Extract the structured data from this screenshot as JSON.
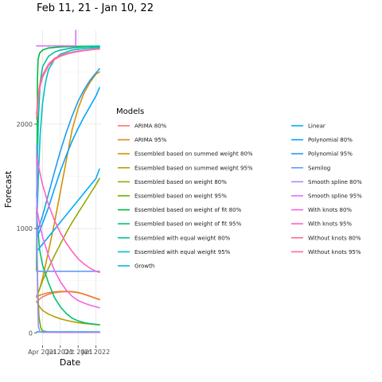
{
  "chart_data": {
    "type": "line",
    "title": "Feb 11, 21 - Jan 10, 22",
    "xlabel": "Date",
    "ylabel": "Forecast",
    "xlim": [
      0,
      11
    ],
    "ylim": [
      -120,
      2900
    ],
    "x_ticks": [
      {
        "x": 1.0,
        "label": "Apr 2021"
      },
      {
        "x": 4.0,
        "label": "Jul 2021"
      },
      {
        "x": 7.0,
        "label": "Oct 2021"
      },
      {
        "x": 10.0,
        "label": "Jan 2022"
      }
    ],
    "y_ticks": [
      0,
      1000,
      2000
    ],
    "grid": true,
    "legend": {
      "title": "Models",
      "position": "right",
      "columns": 2
    },
    "series": [
      {
        "name": "ARIMA 80%",
        "color": "#F8766D",
        "values": [
          [
            0,
            300
          ],
          [
            0.3,
            315
          ],
          [
            1,
            345
          ],
          [
            2,
            370
          ],
          [
            3,
            385
          ],
          [
            4,
            392
          ],
          [
            5,
            395
          ],
          [
            6,
            392
          ],
          [
            7,
            385
          ],
          [
            8,
            370
          ],
          [
            9,
            350
          ],
          [
            10,
            330
          ],
          [
            10.6,
            318
          ]
        ]
      },
      {
        "name": "ARIMA 95%",
        "color": "#E88526",
        "values": [
          [
            0,
            340
          ],
          [
            0.3,
            355
          ],
          [
            1,
            370
          ],
          [
            2,
            385
          ],
          [
            3,
            392
          ],
          [
            4,
            396
          ],
          [
            5,
            398
          ],
          [
            6,
            395
          ],
          [
            7,
            388
          ],
          [
            8,
            372
          ],
          [
            9,
            352
          ],
          [
            10,
            332
          ],
          [
            10.6,
            320
          ]
        ]
      },
      {
        "name": "Essembled based on summed weight 80%",
        "color": "#D39200",
        "values": [
          [
            0,
            350
          ],
          [
            0.5,
            420
          ],
          [
            1,
            520
          ],
          [
            2,
            780
          ],
          [
            3,
            1050
          ],
          [
            4,
            1350
          ],
          [
            5,
            1650
          ],
          [
            6,
            1950
          ],
          [
            7,
            2150
          ],
          [
            8,
            2300
          ],
          [
            9,
            2400
          ],
          [
            10,
            2480
          ],
          [
            10.6,
            2500
          ]
        ]
      },
      {
        "name": "Essembled based on summed weight 95%",
        "color": "#B79F00",
        "values": [
          [
            0,
            300
          ],
          [
            0.5,
            250
          ],
          [
            1,
            215
          ],
          [
            2,
            180
          ],
          [
            3,
            155
          ],
          [
            4,
            135
          ],
          [
            5,
            120
          ],
          [
            6,
            108
          ],
          [
            7,
            98
          ],
          [
            8,
            90
          ],
          [
            9,
            85
          ],
          [
            10,
            80
          ],
          [
            10.6,
            78
          ]
        ]
      },
      {
        "name": "Essembled based on weight 80%",
        "color": "#93AA00",
        "values": [
          [
            0,
            350
          ],
          [
            0.5,
            420
          ],
          [
            1,
            500
          ],
          [
            2,
            620
          ],
          [
            3,
            740
          ],
          [
            4,
            850
          ],
          [
            5,
            960
          ],
          [
            6,
            1060
          ],
          [
            7,
            1150
          ],
          [
            8,
            1240
          ],
          [
            9,
            1330
          ],
          [
            10,
            1420
          ],
          [
            10.6,
            1480
          ]
        ]
      },
      {
        "name": "Essembled based on weight 95%",
        "color": "#5EB300",
        "values": [
          [
            0,
            1200
          ],
          [
            0.08,
            800
          ],
          [
            0.2,
            400
          ],
          [
            0.4,
            150
          ],
          [
            0.7,
            50
          ],
          [
            1,
            20
          ],
          [
            2,
            8
          ],
          [
            4,
            5
          ],
          [
            7,
            5
          ],
          [
            10.6,
            5
          ]
        ]
      },
      {
        "name": "Essembled based on weight of fit 80%",
        "color": "#00BA38",
        "values": [
          [
            0,
            600
          ],
          [
            0.08,
            1800
          ],
          [
            0.15,
            2450
          ],
          [
            0.25,
            2620
          ],
          [
            0.5,
            2680
          ],
          [
            1,
            2710
          ],
          [
            2,
            2730
          ],
          [
            4,
            2740
          ],
          [
            7,
            2745
          ],
          [
            10.6,
            2748
          ]
        ]
      },
      {
        "name": "Essembled based on weight of fit 95%",
        "color": "#00BF74",
        "values": [
          [
            0,
            1150
          ],
          [
            0.2,
            1000
          ],
          [
            0.5,
            800
          ],
          [
            1,
            650
          ],
          [
            2,
            480
          ],
          [
            3,
            340
          ],
          [
            4,
            250
          ],
          [
            5,
            185
          ],
          [
            6,
            140
          ],
          [
            7,
            115
          ],
          [
            8,
            98
          ],
          [
            9,
            88
          ],
          [
            10,
            82
          ],
          [
            10.6,
            78
          ]
        ]
      },
      {
        "name": "Essembled with equal weight 80%",
        "color": "#00C19F",
        "values": [
          [
            0,
            1300
          ],
          [
            0.15,
            1700
          ],
          [
            0.3,
            2050
          ],
          [
            0.6,
            2400
          ],
          [
            1,
            2550
          ],
          [
            2,
            2650
          ],
          [
            3,
            2690
          ],
          [
            4,
            2710
          ],
          [
            6,
            2730
          ],
          [
            8,
            2740
          ],
          [
            10.6,
            2745
          ]
        ]
      },
      {
        "name": "Essembled with equal weight 95%",
        "color": "#00BFC4",
        "values": [
          [
            0,
            1000
          ],
          [
            0.3,
            1500
          ],
          [
            0.6,
            1900
          ],
          [
            1,
            2200
          ],
          [
            1.5,
            2400
          ],
          [
            2,
            2520
          ],
          [
            3,
            2620
          ],
          [
            4,
            2670
          ],
          [
            6,
            2710
          ],
          [
            8,
            2725
          ],
          [
            10.6,
            2735
          ]
        ]
      },
      {
        "name": "Growth",
        "color": "#00B9E3",
        "values": [
          [
            0,
            10
          ],
          [
            3,
            10
          ],
          [
            6,
            10
          ],
          [
            10.6,
            10
          ]
        ]
      },
      {
        "name": "Linear",
        "color": "#00ADFA",
        "values": [
          [
            0,
            780
          ],
          [
            1,
            850
          ],
          [
            2,
            920
          ],
          [
            3,
            990
          ],
          [
            4,
            1060
          ],
          [
            5,
            1130
          ],
          [
            6,
            1200
          ],
          [
            7,
            1270
          ],
          [
            8,
            1340
          ],
          [
            9,
            1410
          ],
          [
            10,
            1480
          ],
          [
            10.6,
            1570
          ]
        ]
      },
      {
        "name": "Polynomial 80%",
        "color": "#00A5FF",
        "values": [
          [
            0,
            900
          ],
          [
            1,
            1050
          ],
          [
            2,
            1200
          ],
          [
            3,
            1380
          ],
          [
            4,
            1550
          ],
          [
            5,
            1700
          ],
          [
            6,
            1840
          ],
          [
            7,
            1960
          ],
          [
            8,
            2070
          ],
          [
            9,
            2170
          ],
          [
            10,
            2270
          ],
          [
            10.6,
            2350
          ]
        ]
      },
      {
        "name": "Polynomial 95%",
        "color": "#1E9CF0",
        "values": [
          [
            0,
            950
          ],
          [
            1,
            1120
          ],
          [
            2,
            1330
          ],
          [
            3,
            1540
          ],
          [
            4,
            1740
          ],
          [
            5,
            1920
          ],
          [
            6,
            2080
          ],
          [
            7,
            2220
          ],
          [
            8,
            2330
          ],
          [
            9,
            2420
          ],
          [
            10,
            2490
          ],
          [
            10.6,
            2530
          ]
        ]
      },
      {
        "name": "Semilog",
        "color": "#619CFF",
        "values": [
          [
            0,
            590
          ],
          [
            3,
            590
          ],
          [
            6,
            590
          ],
          [
            10.6,
            590
          ]
        ]
      },
      {
        "name": "Smooth spline 80%",
        "color": "#AE87FF",
        "values": [
          [
            0,
            1800
          ],
          [
            0.05,
            1200
          ],
          [
            0.15,
            400
          ],
          [
            0.3,
            60
          ],
          [
            0.6,
            10
          ],
          [
            1,
            5
          ],
          [
            4,
            5
          ],
          [
            10.6,
            5
          ]
        ]
      },
      {
        "name": "Smooth spline 95%",
        "color": "#DB72FB",
        "values": [
          [
            0,
            2750
          ],
          [
            1,
            2750
          ],
          [
            3,
            2750
          ],
          [
            5,
            2750
          ],
          [
            6,
            2750
          ],
          [
            6.6,
            2750
          ],
          [
            6.6,
            2900
          ]
        ]
      },
      {
        "name": "With knots 80%",
        "color": "#F564E3",
        "values": [
          [
            0,
            1200
          ],
          [
            0.5,
            1050
          ],
          [
            1,
            920
          ],
          [
            2,
            740
          ],
          [
            3,
            600
          ],
          [
            4,
            490
          ],
          [
            5,
            410
          ],
          [
            6,
            350
          ],
          [
            7,
            310
          ],
          [
            8,
            285
          ],
          [
            9,
            265
          ],
          [
            10,
            250
          ],
          [
            10.6,
            240
          ]
        ]
      },
      {
        "name": "With knots 95%",
        "color": "#FF61C3",
        "values": [
          [
            0,
            1700
          ],
          [
            0.5,
            1550
          ],
          [
            1,
            1420
          ],
          [
            2,
            1230
          ],
          [
            3,
            1080
          ],
          [
            4,
            960
          ],
          [
            5,
            860
          ],
          [
            6,
            780
          ],
          [
            7,
            710
          ],
          [
            8,
            660
          ],
          [
            9,
            620
          ],
          [
            10,
            590
          ],
          [
            10.6,
            580
          ]
        ]
      },
      {
        "name": "Without knots 80%",
        "color": "#FF6C91",
        "values": [
          [
            0,
            2050
          ],
          [
            0.2,
            2200
          ],
          [
            0.5,
            2340
          ],
          [
            1,
            2450
          ],
          [
            2,
            2560
          ],
          [
            3,
            2620
          ],
          [
            4,
            2650
          ],
          [
            5,
            2670
          ],
          [
            6,
            2685
          ],
          [
            7,
            2695
          ],
          [
            8,
            2705
          ],
          [
            9,
            2712
          ],
          [
            10,
            2718
          ],
          [
            10.6,
            2720
          ]
        ]
      },
      {
        "name": "Without knots 95%",
        "color": "#FF68A1",
        "values": [
          [
            0,
            2100
          ],
          [
            0.2,
            2240
          ],
          [
            0.5,
            2370
          ],
          [
            1,
            2470
          ],
          [
            2,
            2575
          ],
          [
            3,
            2630
          ],
          [
            4,
            2658
          ],
          [
            5,
            2676
          ],
          [
            6,
            2690
          ],
          [
            7,
            2700
          ],
          [
            8,
            2708
          ],
          [
            9,
            2714
          ],
          [
            10,
            2720
          ],
          [
            10.6,
            2722
          ]
        ]
      }
    ]
  }
}
